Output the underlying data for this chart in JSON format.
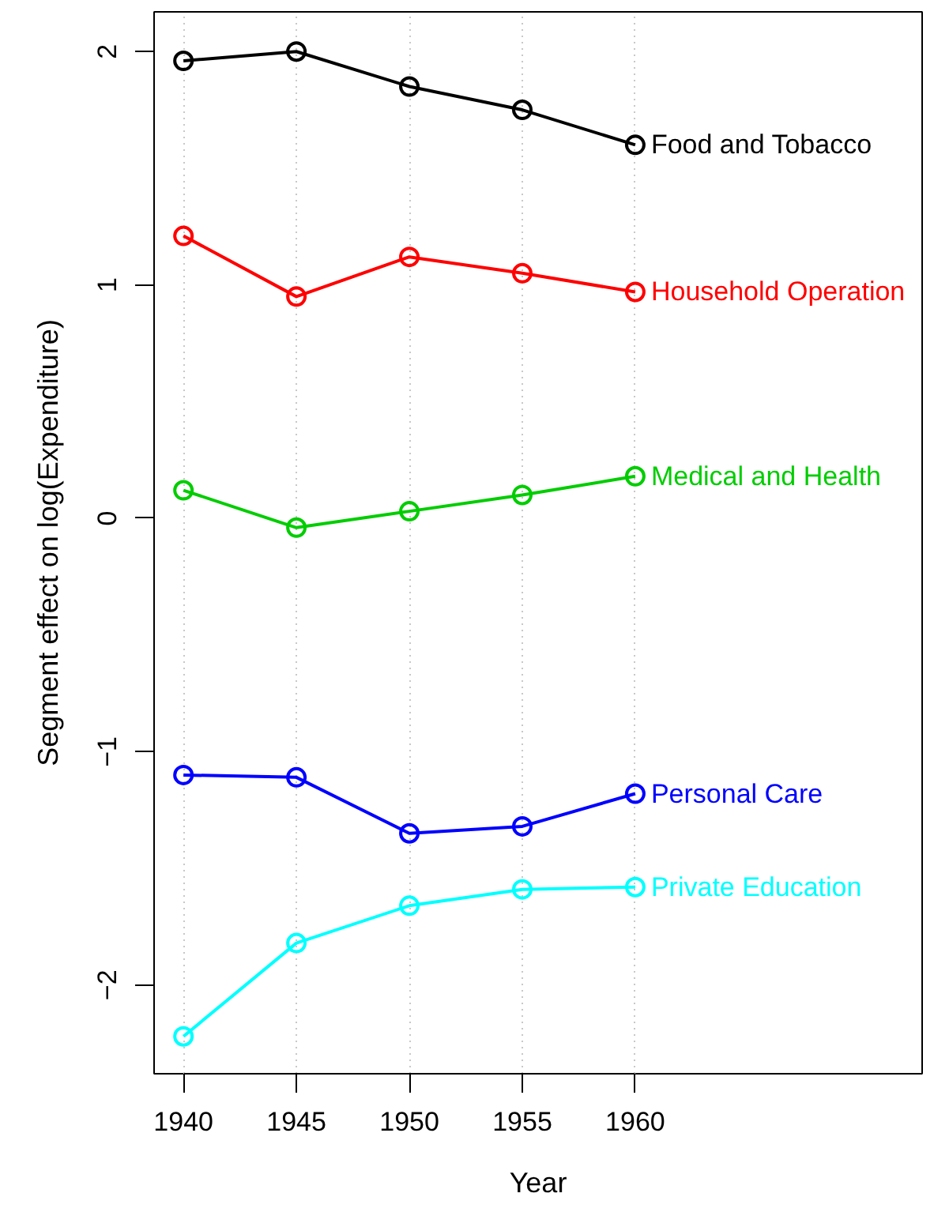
{
  "chart_data": {
    "type": "line",
    "xlabel": "Year",
    "ylabel": "Segment effect on log(Expenditure)",
    "x": [
      1940,
      1945,
      1950,
      1955,
      1960
    ],
    "xlim": [
      1938.7,
      1972.7
    ],
    "xticks": [
      1940,
      1945,
      1950,
      1955,
      1960
    ],
    "ylim": [
      -2.38,
      2.17
    ],
    "yticks": [
      -2,
      -1,
      0,
      1,
      2
    ],
    "grid": "x",
    "marker": "circle",
    "line_style": "solid",
    "series": [
      {
        "name": "Food and Tobacco",
        "color": "#000000",
        "values": [
          1.96,
          2.0,
          1.85,
          1.75,
          1.6
        ]
      },
      {
        "name": "Household Operation",
        "color": "#ff0000",
        "values": [
          1.21,
          0.95,
          1.12,
          1.05,
          0.97
        ]
      },
      {
        "name": "Medical and Health",
        "color": "#00cd00",
        "values": [
          0.12,
          -0.04,
          0.03,
          0.1,
          0.18
        ]
      },
      {
        "name": "Personal Care",
        "color": "#0000ff",
        "values": [
          -1.1,
          -1.11,
          -1.35,
          -1.32,
          -1.18
        ]
      },
      {
        "name": "Private Education",
        "color": "#00ffff",
        "values": [
          -2.22,
          -1.82,
          -1.66,
          -1.59,
          -1.58
        ]
      }
    ]
  }
}
